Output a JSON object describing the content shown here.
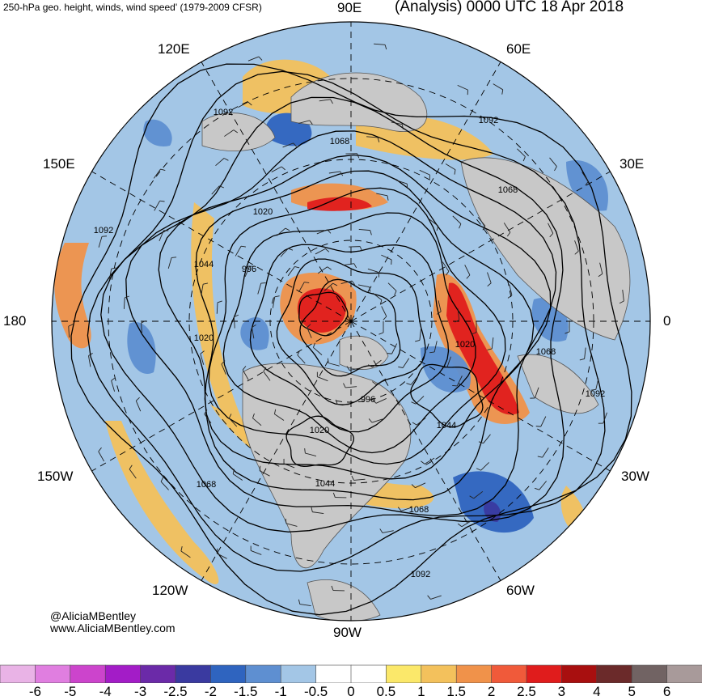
{
  "header": {
    "title_left": "250-hPa geo. height, winds, wind speed' (1979-2009 CFSR)",
    "title_right": "(Analysis) 0000 UTC 18 Apr 2018"
  },
  "credits": {
    "twitter": "@AliciaMBentley",
    "website": "www.AliciaMBentley.com"
  },
  "longitude_labels": [
    {
      "text": "90E",
      "deg": 90
    },
    {
      "text": "60E",
      "deg": 60
    },
    {
      "text": "30E",
      "deg": 30
    },
    {
      "text": "0",
      "deg": 0
    },
    {
      "text": "30W",
      "deg": -30
    },
    {
      "text": "60W",
      "deg": -60
    },
    {
      "text": "90W",
      "deg": -90
    },
    {
      "text": "120W",
      "deg": -120
    },
    {
      "text": "150W",
      "deg": -150
    },
    {
      "text": "180",
      "deg": 180
    },
    {
      "text": "150E",
      "deg": 150
    },
    {
      "text": "120E",
      "deg": 120
    }
  ],
  "height_contour_labels": [
    "1092",
    "1068",
    "1092",
    "1068",
    "1020",
    "996",
    "1044",
    "1092",
    "1020",
    "1068",
    "1092",
    "996",
    "1020",
    "1044",
    "1068",
    "1044",
    "1068",
    "1092",
    "1020"
  ],
  "colorbar": {
    "ticks": [
      "-6",
      "-5",
      "-4",
      "-3",
      "-2.5",
      "-2",
      "-1.5",
      "-1",
      "-0.5",
      "0",
      "0.5",
      "1",
      "1.5",
      "2",
      "2.5",
      "3",
      "4",
      "5",
      "6"
    ],
    "colors": [
      "#e9b3e6",
      "#e07ee0",
      "#cc44cc",
      "#a31cc7",
      "#6b2aa8",
      "#3a3aa0",
      "#2f64bf",
      "#5e8fd1",
      "#a3c6e6",
      "#ffffff",
      "#ffffff",
      "#fbe86a",
      "#f3c15c",
      "#f0924a",
      "#f05a3a",
      "#e01c1c",
      "#a80f0f",
      "#6b2a2a",
      "#716363",
      "#a89a9a"
    ]
  },
  "map": {
    "land_color": "#c8c8c8",
    "contour_color": "#000000",
    "colors": {
      "positive_1": "#fbe86a",
      "positive_2": "#f3c15c",
      "positive_3": "#f0924a",
      "positive_4": "#e01c1c",
      "negative_1": "#a3c6e6",
      "negative_2": "#5e8fd1",
      "negative_3": "#2f64bf",
      "negative_4": "#3a3aa0"
    }
  }
}
